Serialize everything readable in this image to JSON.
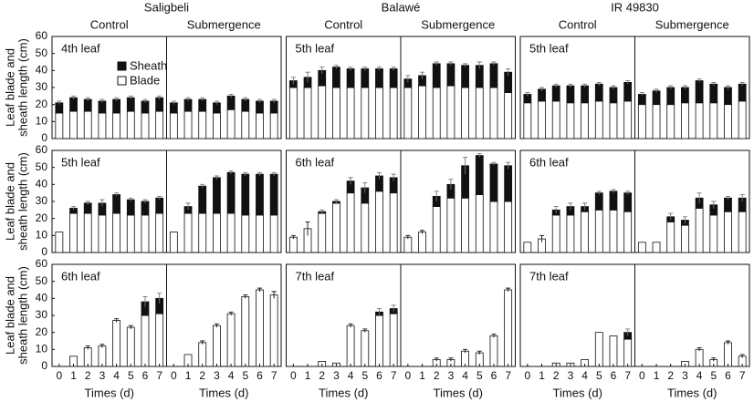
{
  "chart_data": [
    {
      "type": "bar",
      "stacked": true,
      "title": "Saligbeli",
      "subtitle": "Control",
      "annotation": "4th leaf",
      "ylabel": [
        "Leaf blade and",
        "sheath length (cm)"
      ],
      "yticks": [
        0,
        10,
        20,
        30,
        40,
        50,
        60
      ],
      "legend": [
        {
          "name": "Sheath",
          "color": "#111111"
        },
        {
          "name": "Blade",
          "color": "#ffffff"
        }
      ],
      "x": [
        0,
        1,
        2,
        3,
        4,
        5,
        6,
        7
      ],
      "xlim": [
        -0.5,
        7.5
      ],
      "ylim": [
        0,
        60
      ],
      "blade": [
        15,
        16,
        16,
        15,
        15,
        16,
        15,
        16
      ],
      "sheath": [
        6,
        8,
        7,
        7,
        8,
        8,
        7,
        8
      ],
      "error": [
        1,
        1,
        1,
        1,
        1,
        1,
        1,
        1
      ]
    },
    {
      "type": "bar",
      "stacked": true,
      "subtitle": "Submergence",
      "x": [
        0,
        1,
        2,
        3,
        4,
        5,
        6,
        7
      ],
      "xlim": [
        -0.5,
        7.5
      ],
      "ylim": [
        0,
        60
      ],
      "blade": [
        15,
        16,
        16,
        15,
        17,
        16,
        15,
        15
      ],
      "sheath": [
        6,
        7,
        7,
        6,
        8,
        7,
        7,
        7
      ],
      "error": [
        1,
        1,
        1,
        1,
        1,
        1,
        1,
        1
      ]
    },
    {
      "type": "bar",
      "stacked": true,
      "title": "Balawé",
      "subtitle": "Control",
      "annotation": "5th leaf",
      "x": [
        0,
        1,
        2,
        3,
        4,
        5,
        6,
        7
      ],
      "xlim": [
        -0.5,
        7.5
      ],
      "ylim": [
        0,
        60
      ],
      "blade": [
        30,
        30,
        31,
        30,
        30,
        30,
        30,
        30
      ],
      "sheath": [
        4,
        6,
        9,
        12,
        11,
        11,
        11,
        11
      ],
      "error": [
        2,
        3,
        2,
        1,
        1,
        1,
        1,
        1
      ]
    },
    {
      "type": "bar",
      "stacked": true,
      "subtitle": "Submergence",
      "x": [
        0,
        1,
        2,
        3,
        4,
        5,
        6,
        7
      ],
      "xlim": [
        -0.5,
        7.5
      ],
      "ylim": [
        0,
        60
      ],
      "blade": [
        30,
        31,
        30,
        31,
        30,
        30,
        30,
        27
      ],
      "sheath": [
        5,
        6,
        14,
        13,
        13,
        13,
        14,
        12
      ],
      "error": [
        2,
        2,
        1,
        1,
        1,
        2,
        1,
        2
      ]
    },
    {
      "type": "bar",
      "stacked": true,
      "title": "IR 49830",
      "subtitle": "Control",
      "annotation": "5th leaf",
      "x": [
        0,
        1,
        2,
        3,
        4,
        5,
        6,
        7
      ],
      "xlim": [
        -0.5,
        7.5
      ],
      "ylim": [
        0,
        60
      ],
      "blade": [
        21,
        22,
        22,
        21,
        21,
        22,
        21,
        22
      ],
      "sheath": [
        5,
        7,
        9,
        10,
        10,
        10,
        9,
        11
      ],
      "error": [
        1,
        1,
        1,
        1,
        1,
        1,
        1,
        1
      ]
    },
    {
      "type": "bar",
      "stacked": true,
      "subtitle": "Submergence",
      "x": [
        0,
        1,
        2,
        3,
        4,
        5,
        6,
        7
      ],
      "xlim": [
        -0.5,
        7.5
      ],
      "ylim": [
        0,
        60
      ],
      "blade": [
        20,
        20,
        20,
        21,
        21,
        21,
        20,
        22
      ],
      "sheath": [
        6,
        8,
        10,
        9,
        13,
        11,
        10,
        10
      ],
      "error": [
        1,
        1,
        1,
        1,
        1,
        1,
        1,
        1
      ]
    },
    {
      "type": "bar",
      "stacked": true,
      "annotation": "5th leaf",
      "ylabel": [
        "Leaf blade and",
        "sheath length (cm)"
      ],
      "yticks": [
        0,
        10,
        20,
        30,
        40,
        50,
        60
      ],
      "x": [
        0,
        1,
        2,
        3,
        4,
        5,
        6,
        7
      ],
      "xlim": [
        -0.5,
        7.5
      ],
      "ylim": [
        0,
        60
      ],
      "blade": [
        12,
        23,
        23,
        22,
        23,
        22,
        22,
        23
      ],
      "sheath": [
        0,
        3,
        6,
        7,
        11,
        9,
        8,
        9
      ],
      "error": [
        0,
        1,
        1,
        2,
        1,
        1,
        1,
        1
      ]
    },
    {
      "type": "bar",
      "stacked": true,
      "x": [
        0,
        1,
        2,
        3,
        4,
        5,
        6,
        7
      ],
      "xlim": [
        -0.5,
        7.5
      ],
      "ylim": [
        0,
        60
      ],
      "blade": [
        12,
        23,
        23,
        23,
        23,
        22,
        22,
        22
      ],
      "sheath": [
        0,
        4,
        16,
        21,
        24,
        24,
        24,
        24
      ],
      "error": [
        0,
        2,
        1,
        1,
        1,
        1,
        1,
        1
      ]
    },
    {
      "type": "bar",
      "stacked": true,
      "annotation": "6th leaf",
      "x": [
        0,
        1,
        2,
        3,
        4,
        5,
        6,
        7
      ],
      "xlim": [
        -0.5,
        7.5
      ],
      "ylim": [
        0,
        60
      ],
      "blade": [
        9,
        14,
        23,
        29,
        35,
        29,
        36,
        35
      ],
      "sheath": [
        0,
        0,
        1,
        1,
        7,
        9,
        9,
        9
      ],
      "error": [
        1,
        4,
        1,
        1,
        2,
        3,
        2,
        2
      ]
    },
    {
      "type": "bar",
      "stacked": true,
      "x": [
        0,
        1,
        2,
        3,
        4,
        5,
        6,
        7
      ],
      "xlim": [
        -0.5,
        7.5
      ],
      "ylim": [
        0,
        60
      ],
      "blade": [
        9,
        12,
        27,
        32,
        32,
        34,
        30,
        30
      ],
      "sheath": [
        0,
        0,
        6,
        8,
        19,
        23,
        22,
        21
      ],
      "error": [
        1,
        1,
        3,
        3,
        5,
        1,
        1,
        2
      ]
    },
    {
      "type": "bar",
      "stacked": true,
      "annotation": "6th leaf",
      "x": [
        0,
        1,
        2,
        3,
        4,
        5,
        6,
        7
      ],
      "xlim": [
        -0.5,
        7.5
      ],
      "ylim": [
        0,
        60
      ],
      "blade": [
        6,
        8,
        22,
        22,
        24,
        25,
        25,
        24
      ],
      "sheath": [
        0,
        0,
        3,
        5,
        3,
        10,
        11,
        11
      ],
      "error": [
        0,
        2,
        2,
        2,
        2,
        1,
        1,
        1
      ]
    },
    {
      "type": "bar",
      "stacked": true,
      "x": [
        0,
        1,
        2,
        3,
        4,
        5,
        6,
        7
      ],
      "xlim": [
        -0.5,
        7.5
      ],
      "ylim": [
        0,
        60
      ],
      "blade": [
        6,
        6,
        18,
        16,
        26,
        22,
        24,
        24
      ],
      "sheath": [
        0,
        0,
        3,
        3,
        6,
        6,
        8,
        8
      ],
      "error": [
        0,
        0,
        2,
        2,
        3,
        2,
        1,
        2
      ]
    },
    {
      "type": "bar",
      "stacked": true,
      "annotation": "6th leaf",
      "ylabel": [
        "Leaf blade and",
        "sheath length (cm)"
      ],
      "yticks": [
        0,
        10,
        20,
        30,
        40,
        50,
        60
      ],
      "xticks": [
        0,
        1,
        2,
        3,
        4,
        5,
        6,
        7
      ],
      "xlabel": "Times (d)",
      "x": [
        0,
        1,
        2,
        3,
        4,
        5,
        6,
        7
      ],
      "xlim": [
        -0.5,
        7.5
      ],
      "ylim": [
        0,
        60
      ],
      "blade": [
        null,
        6,
        11,
        12,
        27,
        23,
        30,
        31
      ],
      "sheath": [
        null,
        0,
        0,
        0,
        0,
        0,
        8,
        9
      ],
      "error": [
        null,
        0,
        1,
        1,
        1,
        1,
        3,
        3
      ]
    },
    {
      "type": "bar",
      "stacked": true,
      "xticks": [
        0,
        1,
        2,
        3,
        4,
        5,
        6,
        7
      ],
      "xlabel": "Times (d)",
      "x": [
        0,
        1,
        2,
        3,
        4,
        5,
        6,
        7
      ],
      "xlim": [
        -0.5,
        7.5
      ],
      "ylim": [
        0,
        60
      ],
      "blade": [
        null,
        7,
        14,
        24,
        31,
        41,
        45,
        42
      ],
      "sheath": [
        null,
        0,
        0,
        0,
        0,
        0,
        0,
        0
      ],
      "error": [
        null,
        0,
        1,
        1,
        1,
        1,
        1,
        2
      ]
    },
    {
      "type": "bar",
      "stacked": true,
      "annotation": "7th leaf",
      "xticks": [
        0,
        1,
        2,
        3,
        4,
        5,
        6,
        7
      ],
      "xlabel": "Times (d)",
      "x": [
        0,
        1,
        2,
        3,
        4,
        5,
        6,
        7
      ],
      "xlim": [
        -0.5,
        7.5
      ],
      "ylim": [
        0,
        60
      ],
      "blade": [
        null,
        null,
        3,
        2,
        24,
        21,
        30,
        31
      ],
      "sheath": [
        null,
        null,
        0,
        0,
        0,
        0,
        2,
        3
      ],
      "error": [
        null,
        null,
        0,
        0,
        1,
        1,
        2,
        2
      ]
    },
    {
      "type": "bar",
      "stacked": true,
      "xticks": [
        0,
        1,
        2,
        3,
        4,
        5,
        6,
        7
      ],
      "xlabel": "Times (d)",
      "x": [
        0,
        1,
        2,
        3,
        4,
        5,
        6,
        7
      ],
      "xlim": [
        -0.5,
        7.5
      ],
      "ylim": [
        0,
        60
      ],
      "blade": [
        null,
        null,
        4,
        4,
        9,
        8,
        18,
        45
      ],
      "sheath": [
        null,
        null,
        0,
        0,
        0,
        0,
        0,
        0
      ],
      "error": [
        null,
        null,
        1,
        1,
        1,
        1,
        1,
        1
      ]
    },
    {
      "type": "bar",
      "stacked": true,
      "annotation": "7th leaf",
      "xticks": [
        0,
        1,
        2,
        3,
        4,
        5,
        6,
        7
      ],
      "xlabel": "Times (d)",
      "x": [
        0,
        1,
        2,
        3,
        4,
        5,
        6,
        7
      ],
      "xlim": [
        -0.5,
        7.5
      ],
      "ylim": [
        0,
        60
      ],
      "blade": [
        null,
        null,
        2,
        2,
        4,
        20,
        18,
        16
      ],
      "sheath": [
        null,
        null,
        0,
        0,
        0,
        0,
        0,
        4
      ],
      "error": [
        null,
        null,
        0,
        0,
        0,
        0,
        0,
        2
      ]
    },
    {
      "type": "bar",
      "stacked": true,
      "xticks": [
        0,
        1,
        2,
        3,
        4,
        5,
        6,
        7
      ],
      "xlabel": "Times (d)",
      "x": [
        0,
        1,
        2,
        3,
        4,
        5,
        6,
        7
      ],
      "xlim": [
        -0.5,
        7.5
      ],
      "ylim": [
        0,
        60
      ],
      "blade": [
        null,
        null,
        null,
        3,
        10,
        4,
        14,
        6
      ],
      "sheath": [
        null,
        null,
        null,
        0,
        0,
        0,
        0,
        0
      ],
      "error": [
        null,
        null,
        null,
        0,
        1,
        1,
        1,
        1
      ]
    }
  ]
}
